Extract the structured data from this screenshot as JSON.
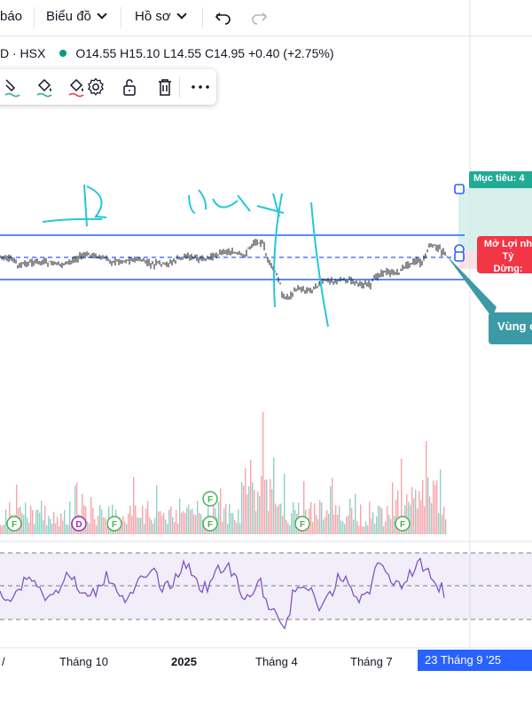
{
  "toolbar": {
    "alerts_label": "báo",
    "chart_menu_label": "Biểu đồ",
    "profile_menu_label": "Hồ sơ",
    "undo_icon": "undo-icon",
    "redo_icon": "redo-icon"
  },
  "legend": {
    "symbol": "D · HSX",
    "status_color": "#089981",
    "open": "O14.55",
    "high": "H15.10",
    "low": "L14.55",
    "close": "C14.95",
    "change": "+0.40 (+2.75%)"
  },
  "drawing_toolbar": {
    "icons": [
      "line-color-icon",
      "fill-color-icon",
      "background-color-icon",
      "settings-icon",
      "lock-icon",
      "delete-icon",
      "more-icon"
    ]
  },
  "position_tool": {
    "target_label": "Mục tiêu: 4",
    "entry_label_1": "Mở Lợi nh",
    "entry_label_2": "Tỷ",
    "stop_label": "Dừng:",
    "tooltip_label": "Vùng c"
  },
  "events": [
    {
      "label": "F"
    },
    {
      "label": "D"
    },
    {
      "label": "F"
    },
    {
      "label": "F"
    },
    {
      "label": "F"
    },
    {
      "label": "F"
    },
    {
      "label": "F"
    },
    {
      "label": "F"
    },
    {
      "label": "F"
    }
  ],
  "time_axis": {
    "labels": [
      "Tháng 10",
      "2025",
      "Tháng 4",
      "Tháng 7"
    ],
    "cursor_date": "23 Tháng 9 '25"
  },
  "colors": {
    "up": "#089981",
    "down": "#f23645",
    "channel": "#2962ff",
    "rsi": "#7e57c2",
    "target_green": "#22ab94",
    "entry_red": "#f23645",
    "tooltip_teal": "#3c9aa6"
  }
}
